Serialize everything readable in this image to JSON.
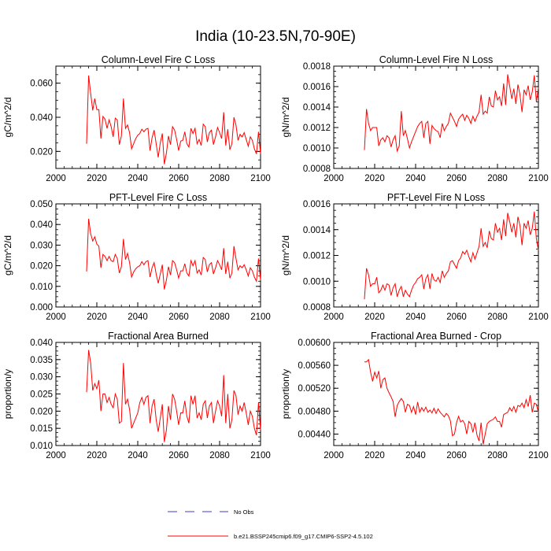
{
  "title": "India (10-23.5N,70-90E)",
  "colors": {
    "model": "#ff0000",
    "obs": "#3b3bd6",
    "axis": "#000000"
  },
  "legend": {
    "obs_label": "No Obs",
    "model_label": "b.e21.BSSP245cmip6.f09_g17.CMIP6-SSP2-4.5.102"
  },
  "chart_data": [
    {
      "type": "line",
      "title": "Column-Level Fire C Loss",
      "ylabel": "gC/m^2/d",
      "xlim": [
        2000,
        2100
      ],
      "ylim": [
        0.01,
        0.07
      ],
      "xticks": [
        "2000",
        "2020",
        "2040",
        "2060",
        "2080",
        "2100"
      ],
      "yticks": [
        "0.020",
        "0.040",
        "0.060"
      ],
      "ytick_values": [
        0.02,
        0.04,
        0.06
      ],
      "series": [
        {
          "x0": 2015,
          "values": [
            0.0245,
            0.0645,
            0.054,
            0.044,
            0.051,
            0.0445,
            0.0445,
            0.0275,
            0.0405,
            0.039,
            0.0335,
            0.0385,
            0.0345,
            0.0285,
            0.0395,
            0.0385,
            0.024,
            0.029,
            0.051,
            0.0335,
            0.0355,
            0.031,
            0.0215,
            0.0245,
            0.0275,
            0.0295,
            0.0305,
            0.033,
            0.0315,
            0.033,
            0.0335,
            0.0205,
            0.028,
            0.0325,
            0.0245,
            0.0165,
            0.025,
            0.0305,
            0.0125,
            0.019,
            0.029,
            0.024,
            0.0345,
            0.0325,
            0.027,
            0.0205,
            0.026,
            0.0265,
            0.0315,
            0.0245,
            0.0225,
            0.0335,
            0.0305,
            0.0335,
            0.0245,
            0.027,
            0.0235,
            0.036,
            0.0345,
            0.0255,
            0.031,
            0.0325,
            0.024,
            0.0285,
            0.034,
            0.031,
            0.0275,
            0.043,
            0.0235,
            0.033,
            0.021,
            0.0245,
            0.04,
            0.0355,
            0.0265,
            0.03,
            0.0285,
            0.031,
            0.027,
            0.023,
            0.0285,
            0.0265,
            0.0215,
            0.0185,
            0.0315,
            0.0185
          ]
        }
      ]
    },
    {
      "type": "line",
      "title": "Column-Level Fire N Loss",
      "ylabel": "gN/m^2/d",
      "xlim": [
        2000,
        2100
      ],
      "ylim": [
        0.0008,
        0.0018
      ],
      "xticks": [
        "2000",
        "2020",
        "2040",
        "2060",
        "2080",
        "2100"
      ],
      "yticks": [
        "0.0008",
        "0.0010",
        "0.0012",
        "0.0014",
        "0.0016",
        "0.0018"
      ],
      "ytick_values": [
        0.0008,
        0.001,
        0.0012,
        0.0014,
        0.0016,
        0.0018
      ],
      "series": [
        {
          "x0": 2015,
          "values": [
            0.00098,
            0.00138,
            0.00124,
            0.00117,
            0.0012,
            0.0012,
            0.0012,
            0.00102,
            0.00108,
            0.0011,
            0.00106,
            0.00112,
            0.0011,
            0.00101,
            0.00108,
            0.00112,
            0.00097,
            0.00102,
            0.00136,
            0.00112,
            0.00117,
            0.00109,
            0.001,
            0.00106,
            0.00111,
            0.00116,
            0.00121,
            0.00124,
            0.00126,
            0.0011,
            0.00124,
            0.00126,
            0.00104,
            0.00122,
            0.00119,
            0.00117,
            0.00116,
            0.0011,
            0.00124,
            0.00117,
            0.00121,
            0.00124,
            0.00134,
            0.0013,
            0.00126,
            0.00121,
            0.00128,
            0.00131,
            0.00133,
            0.00127,
            0.00132,
            0.00129,
            0.00124,
            0.00131,
            0.00126,
            0.00131,
            0.00135,
            0.00152,
            0.00133,
            0.00136,
            0.00134,
            0.0015,
            0.00141,
            0.0014,
            0.00156,
            0.00147,
            0.0015,
            0.00141,
            0.00163,
            0.00142,
            0.00172,
            0.0016,
            0.00148,
            0.00158,
            0.00143,
            0.00162,
            0.00152,
            0.00135,
            0.00157,
            0.00152,
            0.00161,
            0.00147,
            0.00155,
            0.00171,
            0.00145,
            0.00159
          ]
        }
      ]
    },
    {
      "type": "line",
      "title": "PFT-Level Fire C Loss",
      "ylabel": "gC/m^2/d",
      "xlim": [
        2000,
        2100
      ],
      "ylim": [
        0.0,
        0.05
      ],
      "xticks": [
        "2000",
        "2020",
        "2040",
        "2060",
        "2080",
        "2100"
      ],
      "yticks": [
        "0.000",
        "0.010",
        "0.020",
        "0.030",
        "0.040",
        "0.050"
      ],
      "ytick_values": [
        0.0,
        0.01,
        0.02,
        0.03,
        0.04,
        0.05
      ],
      "series": [
        {
          "x0": 2015,
          "values": [
            0.0172,
            0.0428,
            0.0355,
            0.032,
            0.034,
            0.0305,
            0.0295,
            0.019,
            0.0255,
            0.0245,
            0.0225,
            0.0245,
            0.0225,
            0.022,
            0.0255,
            0.0235,
            0.0165,
            0.0195,
            0.033,
            0.023,
            0.026,
            0.0215,
            0.0145,
            0.017,
            0.0185,
            0.0195,
            0.02,
            0.022,
            0.0205,
            0.022,
            0.0225,
            0.0145,
            0.019,
            0.0215,
            0.016,
            0.0115,
            0.016,
            0.0205,
            0.0085,
            0.013,
            0.0195,
            0.0155,
            0.0225,
            0.0215,
            0.018,
            0.014,
            0.0175,
            0.0175,
            0.021,
            0.0165,
            0.015,
            0.0225,
            0.02,
            0.0225,
            0.0165,
            0.018,
            0.0155,
            0.024,
            0.023,
            0.017,
            0.0205,
            0.0215,
            0.016,
            0.019,
            0.0225,
            0.0205,
            0.018,
            0.0285,
            0.016,
            0.022,
            0.014,
            0.0165,
            0.0295,
            0.0235,
            0.018,
            0.02,
            0.019,
            0.0205,
            0.018,
            0.015,
            0.019,
            0.0175,
            0.0145,
            0.0125,
            0.0235,
            0.013
          ]
        }
      ]
    },
    {
      "type": "line",
      "title": "PFT-Level Fire N Loss",
      "ylabel": "gN/m^2/d",
      "xlim": [
        2000,
        2100
      ],
      "ylim": [
        0.0008,
        0.0016
      ],
      "xticks": [
        "2000",
        "2020",
        "2040",
        "2060",
        "2080",
        "2100"
      ],
      "yticks": [
        "0.0008",
        "0.0010",
        "0.0012",
        "0.0014",
        "0.0016"
      ],
      "ytick_values": [
        0.0008,
        0.001,
        0.0012,
        0.0014,
        0.0016
      ],
      "series": [
        {
          "x0": 2015,
          "values": [
            0.00086,
            0.0011,
            0.00105,
            0.00096,
            0.00098,
            0.00098,
            0.00103,
            0.00091,
            0.00093,
            0.00097,
            0.00093,
            0.00098,
            0.00097,
            0.00089,
            0.00095,
            0.00098,
            0.00088,
            0.00093,
            0.00096,
            0.00088,
            0.00093,
            0.0009,
            0.00088,
            0.00093,
            0.00097,
            0.00099,
            0.00102,
            0.00103,
            0.00105,
            0.00094,
            0.00102,
            0.00105,
            0.00094,
            0.00106,
            0.00101,
            0.001,
            0.00103,
            0.00099,
            0.00108,
            0.00103,
            0.00106,
            0.00108,
            0.00115,
            0.00116,
            0.00113,
            0.0011,
            0.00116,
            0.00118,
            0.00123,
            0.00121,
            0.00124,
            0.00119,
            0.00115,
            0.00122,
            0.00117,
            0.00122,
            0.00127,
            0.00141,
            0.00127,
            0.0013,
            0.00126,
            0.00139,
            0.00133,
            0.00132,
            0.00145,
            0.00138,
            0.00141,
            0.00132,
            0.00148,
            0.00135,
            0.00153,
            0.00146,
            0.00138,
            0.00145,
            0.00134,
            0.0015,
            0.00143,
            0.00128,
            0.00145,
            0.00141,
            0.00147,
            0.00136,
            0.00141,
            0.00154,
            0.00133,
            0.00124
          ]
        }
      ]
    },
    {
      "type": "line",
      "title": "Fractional Area Burned",
      "ylabel": "proportion/y",
      "xlim": [
        2000,
        2100
      ],
      "ylim": [
        0.01,
        0.04
      ],
      "xticks": [
        "2000",
        "2020",
        "2040",
        "2060",
        "2080",
        "2100"
      ],
      "yticks": [
        "0.010",
        "0.015",
        "0.020",
        "0.025",
        "0.030",
        "0.035",
        "0.040"
      ],
      "ytick_values": [
        0.01,
        0.015,
        0.02,
        0.025,
        0.03,
        0.035,
        0.04
      ],
      "series": [
        {
          "x0": 2015,
          "values": [
            0.0255,
            0.0378,
            0.034,
            0.026,
            0.028,
            0.0265,
            0.029,
            0.02,
            0.025,
            0.025,
            0.0225,
            0.024,
            0.022,
            0.021,
            0.025,
            0.0235,
            0.0165,
            0.017,
            0.034,
            0.022,
            0.0235,
            0.0205,
            0.015,
            0.0165,
            0.018,
            0.0195,
            0.0225,
            0.024,
            0.022,
            0.024,
            0.0245,
            0.0165,
            0.0215,
            0.0235,
            0.0175,
            0.014,
            0.018,
            0.022,
            0.011,
            0.0145,
            0.0215,
            0.0175,
            0.025,
            0.0235,
            0.02,
            0.016,
            0.0195,
            0.0195,
            0.023,
            0.0185,
            0.0165,
            0.0245,
            0.022,
            0.0245,
            0.018,
            0.0195,
            0.0175,
            0.022,
            0.023,
            0.018,
            0.0215,
            0.0225,
            0.0165,
            0.02,
            0.023,
            0.0215,
            0.0185,
            0.0305,
            0.0165,
            0.025,
            0.015,
            0.0175,
            0.026,
            0.0245,
            0.019,
            0.0215,
            0.02,
            0.0225,
            0.0195,
            0.016,
            0.02,
            0.0185,
            0.015,
            0.013,
            0.0225,
            0.0145
          ]
        }
      ]
    },
    {
      "type": "line",
      "title": "Fractional Area Burned - Crop",
      "ylabel": "proportion/y",
      "xlim": [
        2000,
        2100
      ],
      "ylim": [
        0.0042,
        0.006
      ],
      "xticks": [
        "2000",
        "2020",
        "2040",
        "2060",
        "2080",
        "2100"
      ],
      "yticks": [
        "0.00440",
        "0.00480",
        "0.00520",
        "0.00560",
        "0.00600"
      ],
      "ytick_values": [
        0.0044,
        0.0048,
        0.0052,
        0.0056,
        0.006
      ],
      "series": [
        {
          "x0": 2015,
          "values": [
            0.00566,
            0.00566,
            0.0057,
            0.00548,
            0.00532,
            0.00548,
            0.00538,
            0.0055,
            0.0052,
            0.00535,
            0.00538,
            0.0052,
            0.00512,
            0.00505,
            0.00497,
            0.0047,
            0.0049,
            0.00497,
            0.00502,
            0.00497,
            0.00478,
            0.00492,
            0.0049,
            0.00478,
            0.00488,
            0.00474,
            0.00496,
            0.00478,
            0.00486,
            0.0048,
            0.00487,
            0.00478,
            0.00482,
            0.00477,
            0.00485,
            0.00476,
            0.00484,
            0.00478,
            0.00474,
            0.0047,
            0.00476,
            0.00472,
            0.00463,
            0.00437,
            0.0044,
            0.0046,
            0.00471,
            0.00461,
            0.00464,
            0.00458,
            0.0044,
            0.00462,
            0.00458,
            0.00443,
            0.0046,
            0.00438,
            0.00428,
            0.0046,
            0.00422,
            0.0044,
            0.00458,
            0.00462,
            0.00464,
            0.00466,
            0.0047,
            0.00462,
            0.00462,
            0.00452,
            0.00474,
            0.00476,
            0.00478,
            0.00486,
            0.0048,
            0.00488,
            0.00478,
            0.0049,
            0.00488,
            0.00494,
            0.00486,
            0.005,
            0.00488,
            0.00508,
            0.00478,
            0.00494,
            0.00492,
            0.00478
          ]
        }
      ]
    }
  ]
}
